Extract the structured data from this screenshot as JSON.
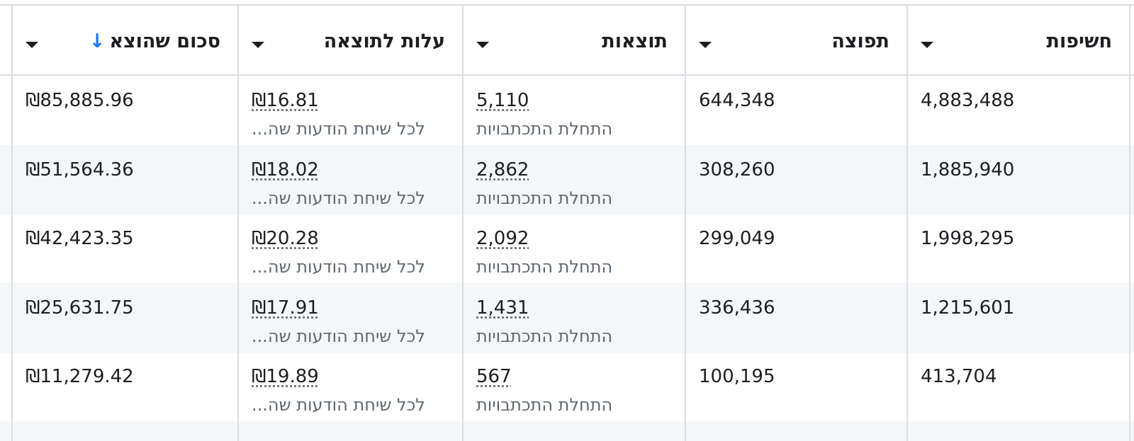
{
  "columns": {
    "exposure": "חשיפות",
    "reach": "תפוצה",
    "results": "תוצאות",
    "cost_per_result": "עלות לתוצאה",
    "amount_spent": "סכום שהוצא",
    "sort_icon": "arrow-down-icon",
    "sort_arrow": "↓"
  },
  "rows": [
    {
      "exposure": "4,883,488",
      "reach": "644,348",
      "results": "5,110",
      "results_label": "התחלת התכתבויות",
      "cost": "₪16.81",
      "cost_label": "לכל שיחת הודעות שה...",
      "spent": "₪85,885.96"
    },
    {
      "exposure": "1,885,940",
      "reach": "308,260",
      "results": "2,862",
      "results_label": "התחלת התכתבויות",
      "cost": "₪18.02",
      "cost_label": "לכל שיחת הודעות שה...",
      "spent": "₪51,564.36"
    },
    {
      "exposure": "1,998,295",
      "reach": "299,049",
      "results": "2,092",
      "results_label": "התחלת התכתבויות",
      "cost": "₪20.28",
      "cost_label": "לכל שיחת הודעות שה...",
      "spent": "₪42,423.35"
    },
    {
      "exposure": "1,215,601",
      "reach": "336,436",
      "results": "1,431",
      "results_label": "התחלת התכתבויות",
      "cost": "₪17.91",
      "cost_label": "לכל שיחת הודעות שה...",
      "spent": "₪25,631.75"
    },
    {
      "exposure": "413,704",
      "reach": "100,195",
      "results": "567",
      "results_label": "התחלת התכתבויות",
      "cost": "₪19.89",
      "cost_label": "לכל שיחת הודעות שה...",
      "spent": "₪11,279.42"
    }
  ],
  "colors": {
    "border": "#dadde1",
    "stripe": "#f5f6f7",
    "sort_accent": "#1877f2"
  }
}
